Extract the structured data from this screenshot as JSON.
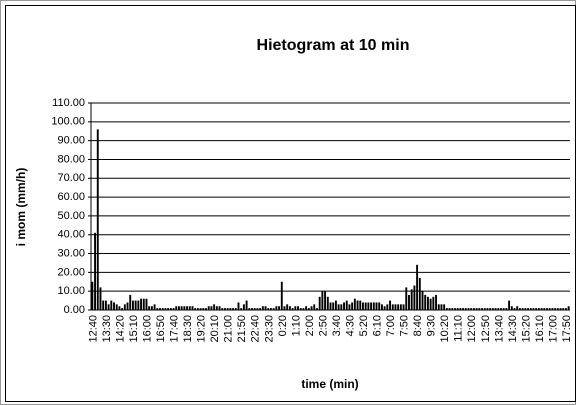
{
  "chart_data": {
    "type": "bar",
    "title": "Hietogram at 10 min",
    "x_label": "time (min)",
    "y_label": "i mom (mm/h)",
    "color": "#000000",
    "grid": true,
    "ylim": [
      0,
      110
    ],
    "yticks": [
      {
        "value": 0,
        "label": "0.00"
      },
      {
        "value": 10,
        "label": "10.00"
      },
      {
        "value": 20,
        "label": "20.00"
      },
      {
        "value": 30,
        "label": "30.00"
      },
      {
        "value": 40,
        "label": "40.00"
      },
      {
        "value": 50,
        "label": "50.00"
      },
      {
        "value": 60,
        "label": "60.00"
      },
      {
        "value": 70,
        "label": "70.00"
      },
      {
        "value": 80,
        "label": "80.00"
      },
      {
        "value": 90,
        "label": "90.00"
      },
      {
        "value": 100,
        "label": "100.00"
      },
      {
        "value": 110,
        "label": "110.00"
      }
    ],
    "categories": [
      "12:40",
      null,
      null,
      null,
      null,
      "13:30",
      null,
      null,
      null,
      null,
      "14:20",
      null,
      null,
      null,
      null,
      "15:10",
      null,
      null,
      null,
      null,
      "16:00",
      null,
      null,
      null,
      null,
      "16:50",
      null,
      null,
      null,
      null,
      "17:40",
      null,
      null,
      null,
      null,
      "18:30",
      null,
      null,
      null,
      null,
      "19:20",
      null,
      null,
      null,
      null,
      "20:10",
      null,
      null,
      null,
      null,
      "21:00",
      null,
      null,
      null,
      null,
      "21:50",
      null,
      null,
      null,
      null,
      "22:40",
      null,
      null,
      null,
      null,
      "23:30",
      null,
      null,
      null,
      null,
      "0:20",
      null,
      null,
      null,
      null,
      "1:10",
      null,
      null,
      null,
      null,
      "2:00",
      null,
      null,
      null,
      null,
      "2:50",
      null,
      null,
      null,
      null,
      "3:40",
      null,
      null,
      null,
      null,
      "4:30",
      null,
      null,
      null,
      null,
      "5:20",
      null,
      null,
      null,
      null,
      "6:10",
      null,
      null,
      null,
      null,
      "7:00",
      null,
      null,
      null,
      null,
      "7:50",
      null,
      null,
      null,
      null,
      "8:40",
      null,
      null,
      null,
      null,
      "9:30",
      null,
      null,
      null,
      null,
      "10:20",
      null,
      null,
      null,
      null,
      "11:10",
      null,
      null,
      null,
      null,
      "12:00",
      null,
      null,
      null,
      null,
      "12:50",
      null,
      null,
      null,
      null,
      "13:40",
      null,
      null,
      null,
      null,
      "14:30",
      null,
      null,
      null,
      null,
      "15:20",
      null,
      null,
      null,
      null,
      "16:10",
      null,
      null,
      null,
      null,
      "17:00",
      null,
      null,
      null,
      null,
      "17:50",
      null
    ],
    "values": [
      15,
      41,
      96,
      12,
      5,
      5,
      3,
      5,
      4,
      3,
      2,
      1,
      3,
      4,
      8,
      5,
      5,
      5,
      6,
      6,
      6,
      2,
      2,
      3,
      1,
      1,
      1,
      1,
      1,
      1,
      1,
      2,
      2,
      2,
      2,
      2,
      2,
      2,
      1,
      1,
      1,
      1,
      1,
      2,
      2,
      3,
      2,
      2,
      1,
      1,
      1,
      1,
      1,
      1,
      4,
      1,
      3,
      5,
      1,
      1,
      1,
      1,
      1,
      2,
      2,
      1,
      1,
      1,
      2,
      2,
      15,
      2,
      3,
      2,
      1,
      2,
      2,
      1,
      1,
      2,
      1,
      2,
      3,
      1,
      7,
      10,
      10,
      7,
      4,
      4,
      5,
      3,
      3,
      4,
      5,
      3,
      4,
      6,
      5,
      5,
      4,
      4,
      4,
      4,
      4,
      4,
      4,
      3,
      2,
      3,
      5,
      3,
      3,
      3,
      3,
      3,
      12,
      8,
      11,
      13,
      24,
      17,
      10,
      8,
      7,
      6,
      7,
      8,
      3,
      3,
      3,
      1,
      1,
      1,
      1,
      1,
      1,
      1,
      1,
      1,
      1,
      1,
      1,
      1,
      1,
      1,
      1,
      1,
      1,
      1,
      1,
      1,
      1,
      1,
      5,
      2,
      1,
      2,
      1,
      1,
      1,
      1,
      1,
      1,
      1,
      1,
      1,
      1,
      1,
      1,
      1,
      1,
      1,
      1,
      1,
      1,
      2
    ]
  }
}
